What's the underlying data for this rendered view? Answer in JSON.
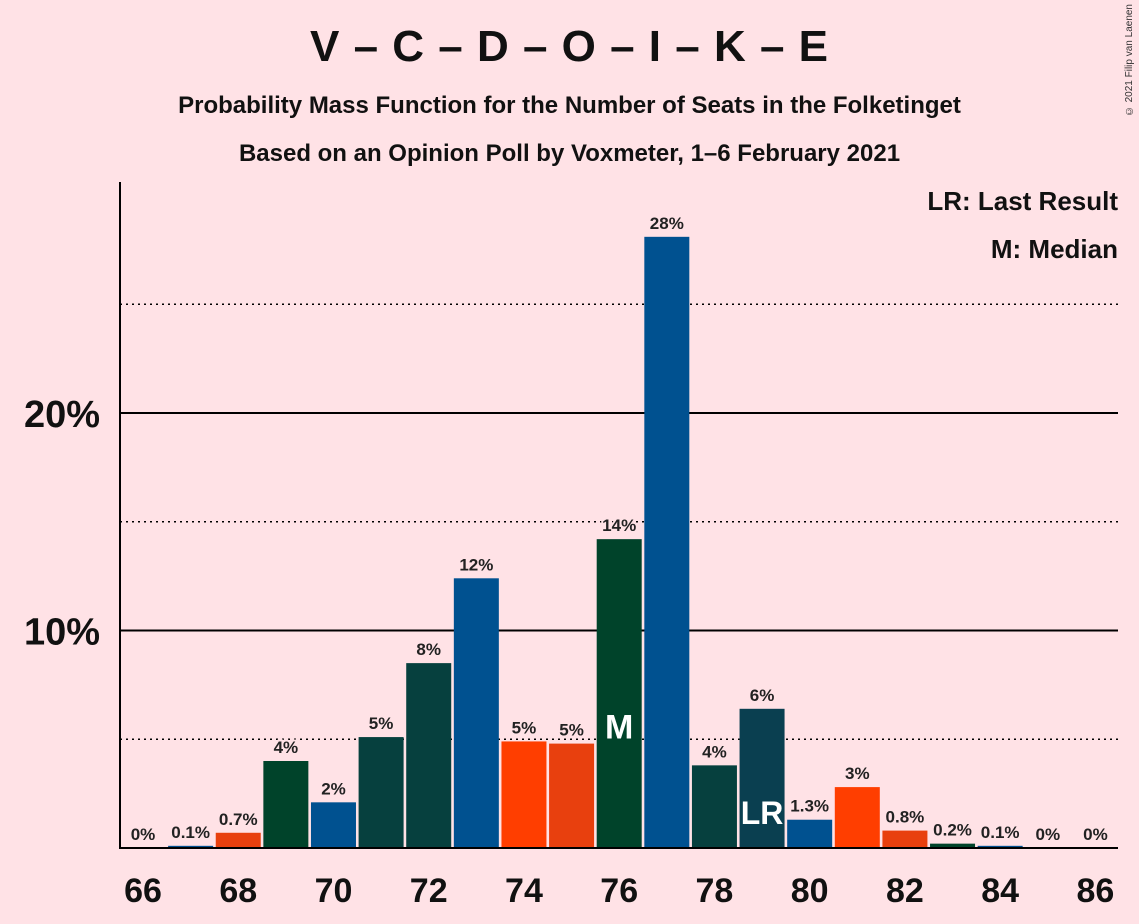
{
  "title": "V – C – D – O – I – K – E",
  "subtitle_1": "Probability Mass Function for the Number of Seats in the Folketinget",
  "subtitle_2": "Based on an Opinion Poll by Voxmeter, 1–6 February 2021",
  "copyright": "© 2021 Filip van Laenen",
  "legend": {
    "last_result": "LR: Last Result",
    "median": "M: Median"
  },
  "colors": {
    "background": "#FFE2E6",
    "dark_green": "#00432A",
    "blue": "#005190",
    "teal": "#06403E",
    "orange": "#FF3E00",
    "orange_red": "#E8400E",
    "slate": "#0A3F50"
  },
  "chart_data": {
    "type": "bar",
    "x": [
      66,
      67,
      68,
      69,
      70,
      71,
      72,
      73,
      74,
      75,
      76,
      77,
      78,
      79,
      80,
      81,
      82,
      83,
      84,
      85,
      86
    ],
    "values": [
      0,
      0.1,
      0.7,
      4.0,
      2.1,
      5.1,
      8.5,
      12.4,
      4.9,
      4.8,
      14.2,
      28.1,
      3.8,
      6.4,
      1.3,
      2.8,
      0.8,
      0.2,
      0.1,
      0,
      0
    ],
    "value_labels": [
      "0%",
      "0.1%",
      "0.7%",
      "4%",
      "2%",
      "5%",
      "8%",
      "12%",
      "5%",
      "5%",
      "14%",
      "28%",
      "4%",
      "6%",
      "1.3%",
      "3%",
      "0.8%",
      "0.2%",
      "0.1%",
      "0%",
      "0%"
    ],
    "bar_colors": [
      "#00432A",
      "#005190",
      "#E8400E",
      "#00432A",
      "#005190",
      "#06403E",
      "#06403E",
      "#005190",
      "#FF3E00",
      "#E8400E",
      "#00432A",
      "#005190",
      "#06403E",
      "#0A3F50",
      "#005190",
      "#FF3E00",
      "#E8400E",
      "#00432A",
      "#005190",
      "#06403E",
      "#06403E"
    ],
    "x_tick_labels": [
      "66",
      "68",
      "70",
      "72",
      "74",
      "76",
      "78",
      "80",
      "82",
      "84",
      "86"
    ],
    "y_tick_labels": [
      "10%",
      "20%"
    ],
    "ylim": [
      0,
      30
    ],
    "major_grid": [
      10,
      20
    ],
    "minor_grid": [
      5,
      15,
      25
    ],
    "median_seat": 76,
    "median_label": "M",
    "last_result_seat": 79,
    "last_result_label": "LR",
    "legend_position": "top-right"
  }
}
